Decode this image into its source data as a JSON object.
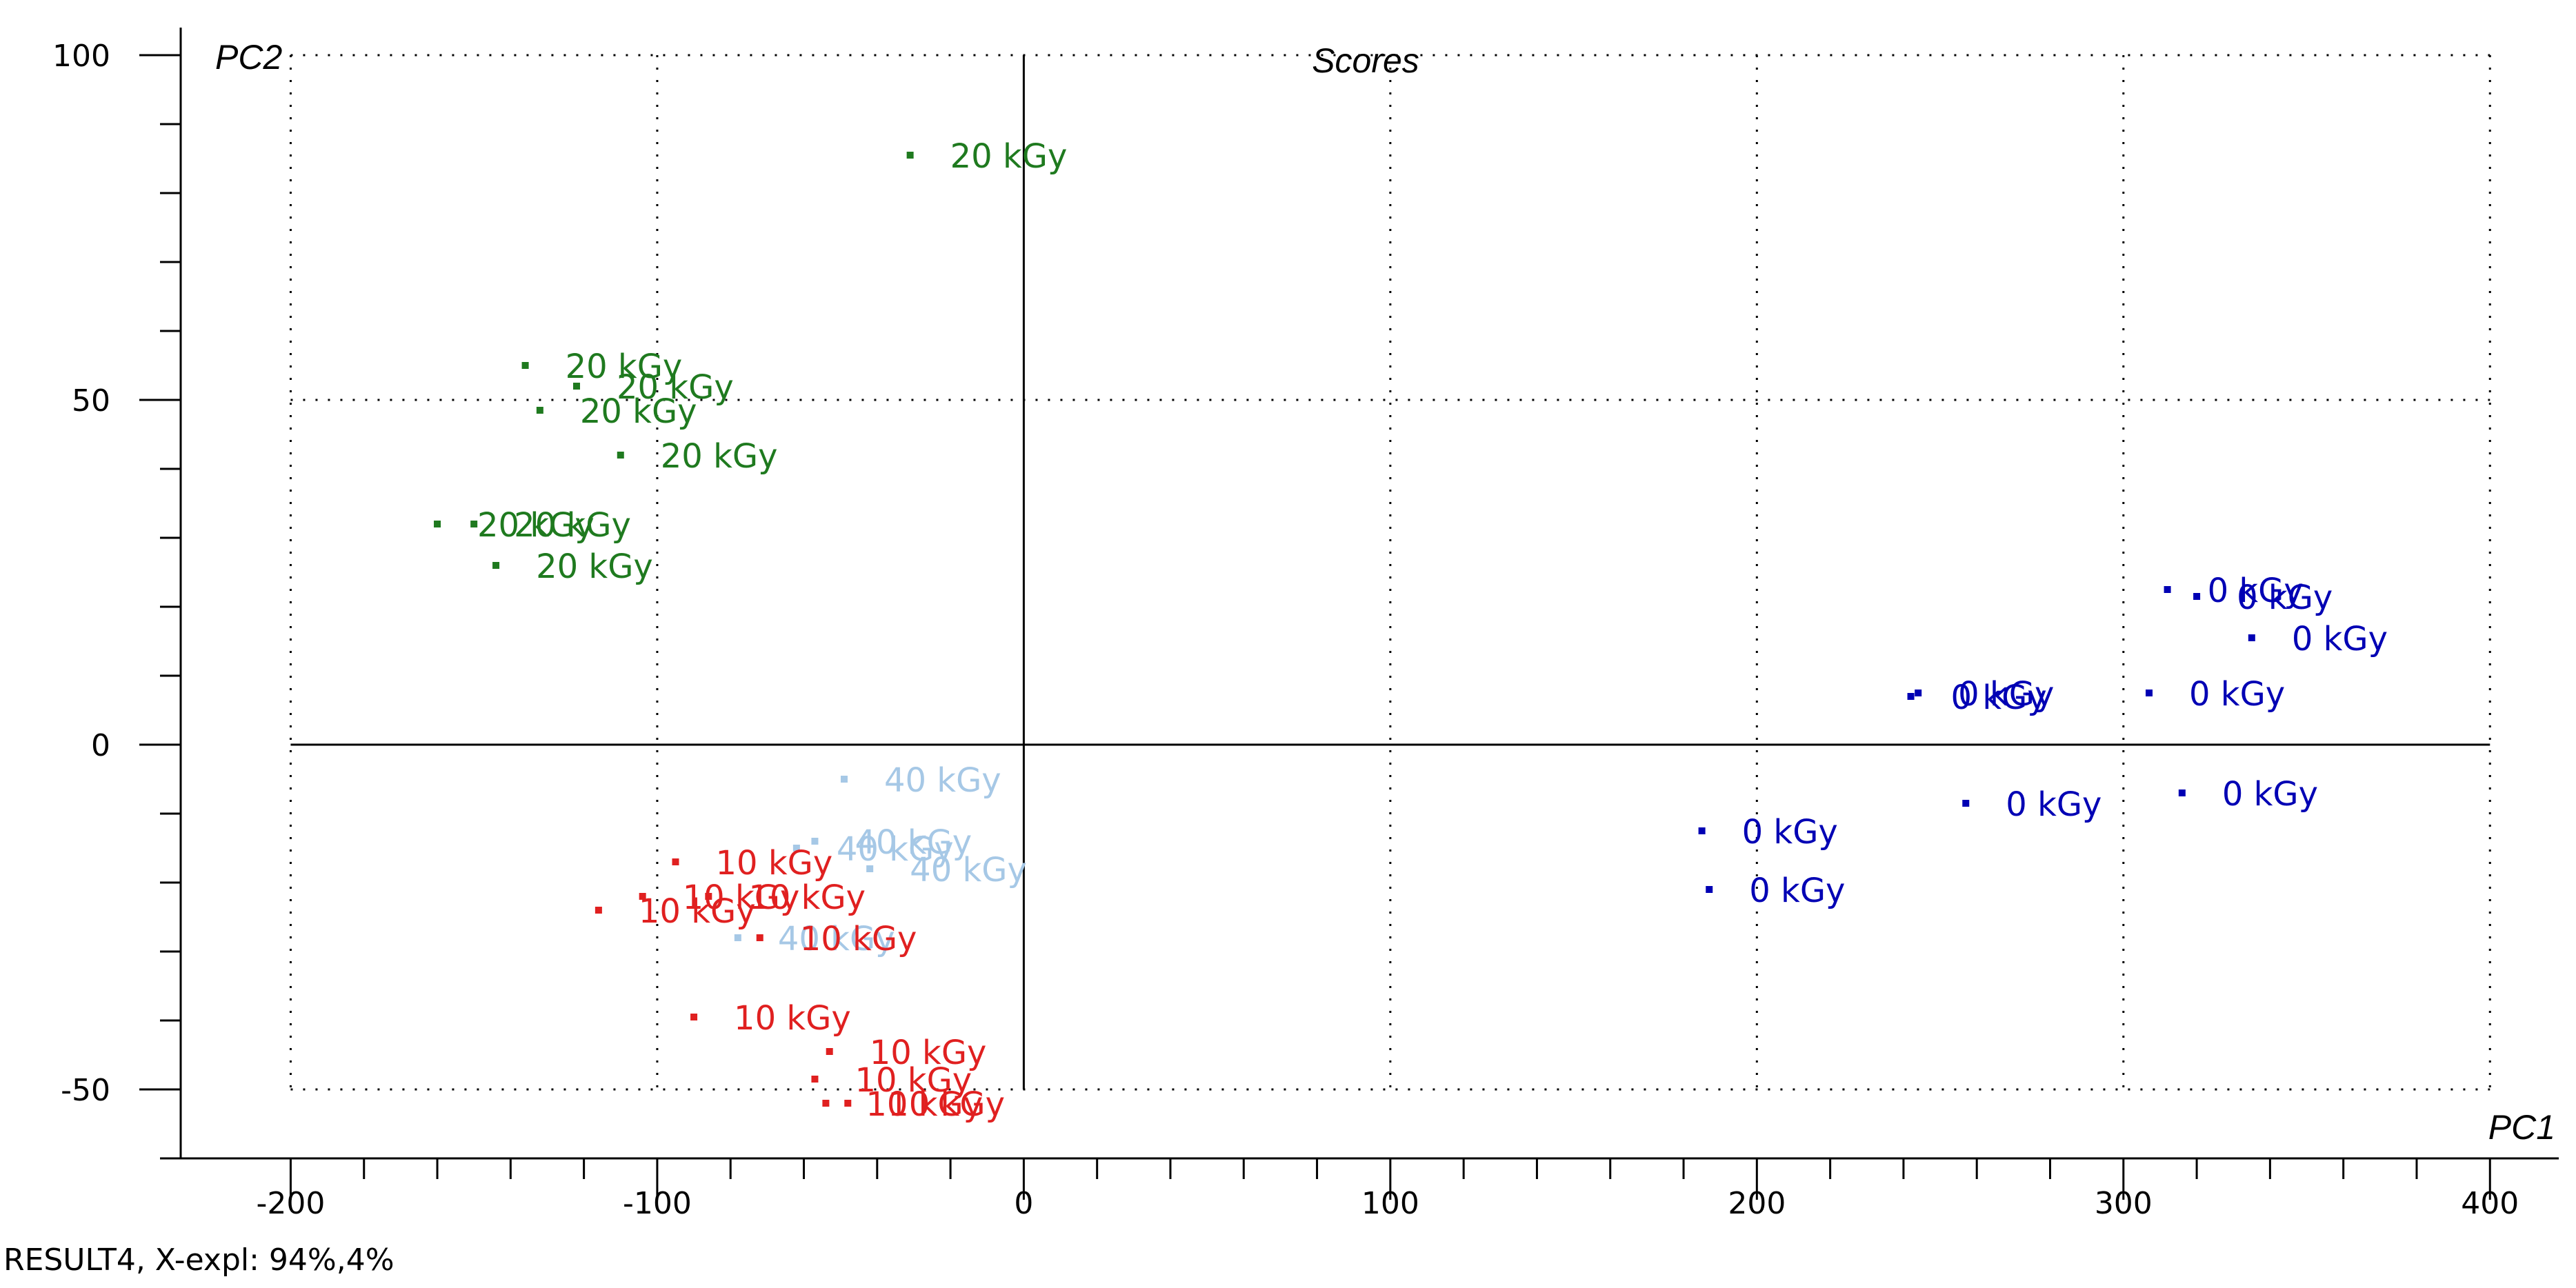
{
  "chart_data": {
    "type": "scatter",
    "title": "Scores",
    "xlabel": "PC1",
    "ylabel": "PC2",
    "xlim": [
      -230,
      415
    ],
    "ylim": [
      -60,
      104
    ],
    "xticks": [
      -200,
      -100,
      0,
      100,
      200,
      300,
      400
    ],
    "yticks": [
      -50,
      0,
      50,
      100
    ],
    "grid": true,
    "footer": "RESULT4, X-expl: 94%,4%",
    "series": [
      {
        "label": "20 kGy",
        "color": "#1f7a1f",
        "points": [
          {
            "x": -31,
            "y": 85.5
          },
          {
            "x": -136,
            "y": 55
          },
          {
            "x": -122,
            "y": 52
          },
          {
            "x": -132,
            "y": 48.5
          },
          {
            "x": -110,
            "y": 42
          },
          {
            "x": -160,
            "y": 32
          },
          {
            "x": -150,
            "y": 32
          },
          {
            "x": -144,
            "y": 26
          }
        ]
      },
      {
        "label": "0 kGy",
        "color": "#0000b4",
        "points": [
          {
            "x": 312,
            "y": 22.5
          },
          {
            "x": 320,
            "y": 21.5
          },
          {
            "x": 335,
            "y": 15.5
          },
          {
            "x": 242,
            "y": 7
          },
          {
            "x": 244,
            "y": 7.5
          },
          {
            "x": 307,
            "y": 7.5
          },
          {
            "x": 257,
            "y": -8.5
          },
          {
            "x": 316,
            "y": -7
          },
          {
            "x": 185,
            "y": -12.5
          },
          {
            "x": 187,
            "y": -21
          }
        ]
      },
      {
        "label": "40 kGy",
        "color": "#a6c8e6",
        "points": [
          {
            "x": -49,
            "y": -5
          },
          {
            "x": -62,
            "y": -15
          },
          {
            "x": -57,
            "y": -14
          },
          {
            "x": -42,
            "y": -18
          },
          {
            "x": -78,
            "y": -28
          }
        ]
      },
      {
        "label": "10 kGy",
        "color": "#e02020",
        "points": [
          {
            "x": -95,
            "y": -17
          },
          {
            "x": -116,
            "y": -24
          },
          {
            "x": -104,
            "y": -22
          },
          {
            "x": -86,
            "y": -22
          },
          {
            "x": -72,
            "y": -28
          },
          {
            "x": -90,
            "y": -39.5
          },
          {
            "x": -53,
            "y": -44.5
          },
          {
            "x": -57,
            "y": -48.5
          },
          {
            "x": -54,
            "y": -52
          },
          {
            "x": -48,
            "y": -52
          }
        ]
      }
    ]
  }
}
